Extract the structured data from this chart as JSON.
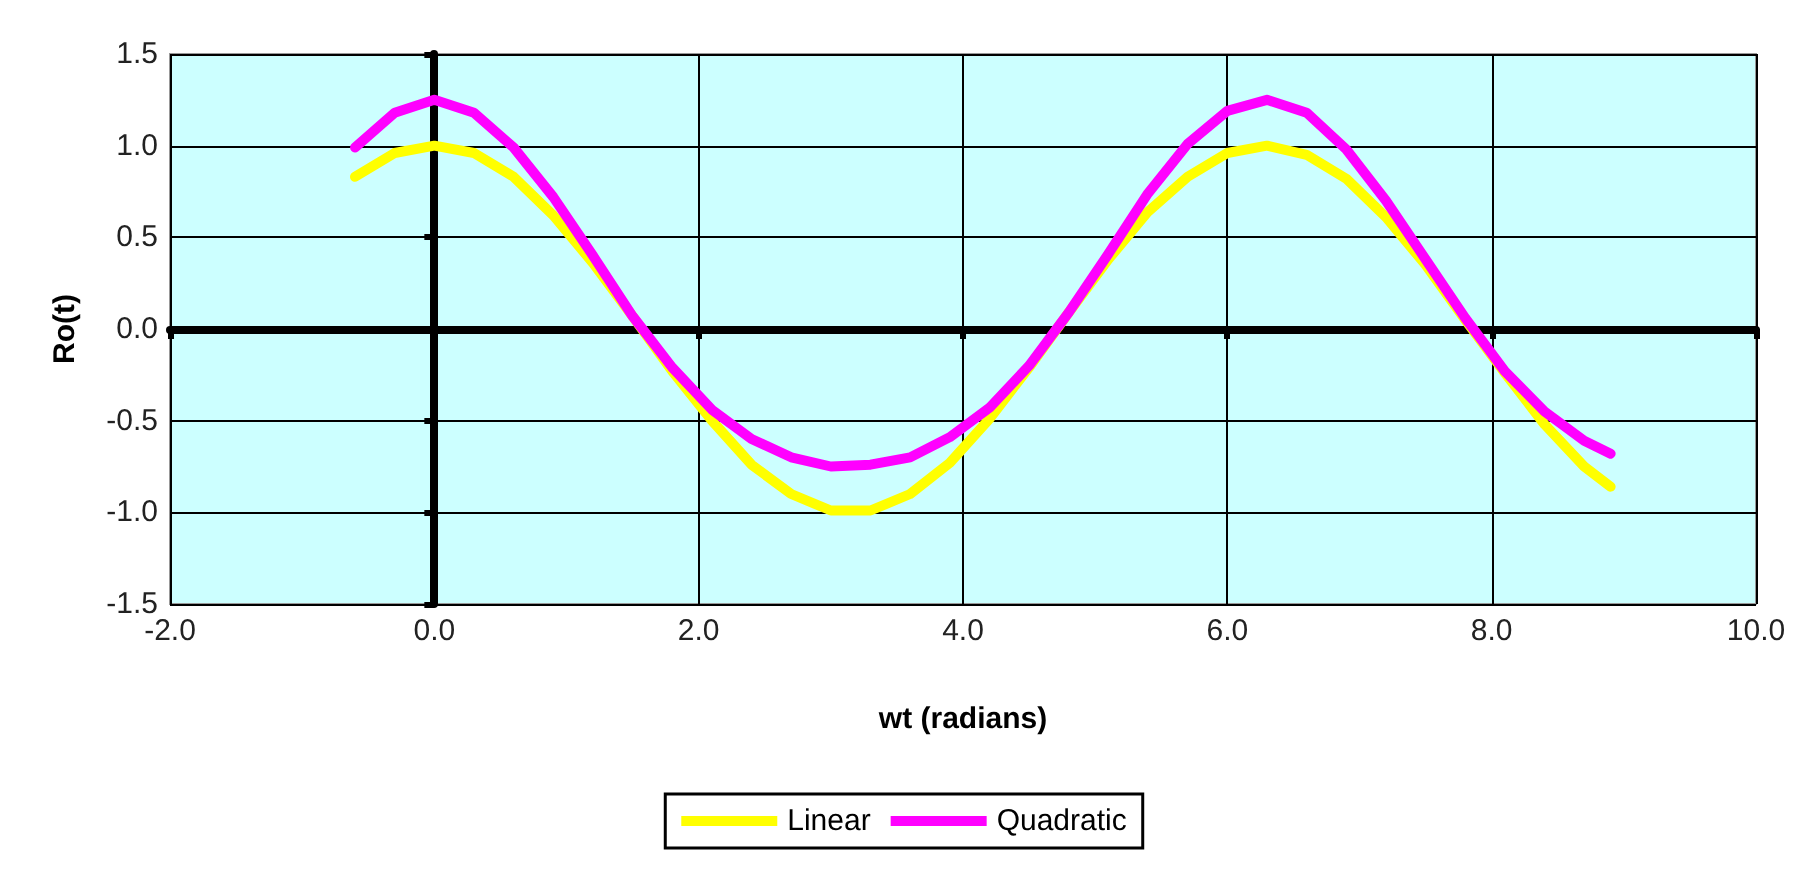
{
  "chart_data": {
    "type": "line",
    "xlabel": "wt (radians)",
    "ylabel": "Ro(t)",
    "x": [
      -0.6,
      -0.3,
      0,
      0.3,
      0.6,
      0.9,
      1.2,
      1.5,
      1.8,
      2.1,
      2.4,
      2.7,
      3.0,
      3.3,
      3.6,
      3.9,
      4.2,
      4.5,
      4.8,
      5.1,
      5.4,
      5.7,
      6.0,
      6.3,
      6.6,
      6.9,
      7.2,
      7.5,
      7.8,
      8.1,
      8.4,
      8.7,
      8.9
    ],
    "series": [
      {
        "name": "Linear",
        "color": "#ffff00",
        "values": [
          0.83,
          0.96,
          1.0,
          0.96,
          0.83,
          0.62,
          0.36,
          0.07,
          -0.23,
          -0.5,
          -0.74,
          -0.9,
          -0.99,
          -0.99,
          -0.9,
          -0.73,
          -0.49,
          -0.21,
          0.09,
          0.38,
          0.64,
          0.83,
          0.96,
          1.0,
          0.95,
          0.82,
          0.61,
          0.35,
          0.05,
          -0.24,
          -0.52,
          -0.75,
          -0.86
        ]
      },
      {
        "name": "Quadratic",
        "color": "#ff00ff",
        "values": [
          0.99,
          1.18,
          1.25,
          1.18,
          0.99,
          0.72,
          0.4,
          0.07,
          -0.21,
          -0.44,
          -0.6,
          -0.7,
          -0.75,
          -0.74,
          -0.7,
          -0.59,
          -0.43,
          -0.2,
          0.09,
          0.41,
          0.74,
          1.01,
          1.19,
          1.25,
          1.18,
          0.98,
          0.7,
          0.38,
          0.06,
          -0.23,
          -0.45,
          -0.61,
          -0.68
        ]
      }
    ],
    "xlim": [
      -2,
      10
    ],
    "xticks": [
      {
        "value": -2,
        "label": "-2.0"
      },
      {
        "value": 0,
        "label": "0.0"
      },
      {
        "value": 2,
        "label": "2.0"
      },
      {
        "value": 4,
        "label": "4.0"
      },
      {
        "value": 6,
        "label": "6.0"
      },
      {
        "value": 8,
        "label": "8.0"
      },
      {
        "value": 10,
        "label": "10.0"
      }
    ],
    "ylim": [
      -1.5,
      1.5
    ],
    "yticks": [
      -1.5,
      {
        "value": -1,
        "label": "-1.0"
      },
      -0.5,
      {
        "value": 0,
        "label": "0.0"
      },
      0.5,
      {
        "value": 1,
        "label": "1.0"
      },
      1.5
    ],
    "grid": true,
    "legend": "bottom",
    "marker": "none",
    "line_style": "solid"
  }
}
